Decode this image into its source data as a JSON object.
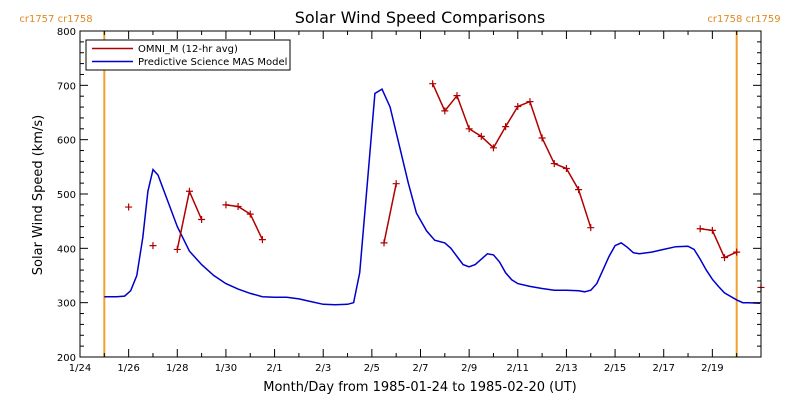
{
  "chart_data": {
    "type": "line",
    "title": "Solar Wind Speed Comparisons",
    "xlabel": "Month/Day from 1985-01-24 to 1985-02-20 (UT)",
    "ylabel": "Solar Wind Speed (km/s)",
    "xlim": [
      "1985-01-24",
      "1985-02-20"
    ],
    "ylim": [
      200,
      800
    ],
    "x_ticks": [
      {
        "date": "1985-01-24",
        "label": "1/24"
      },
      {
        "date": "1985-01-26",
        "label": "1/26"
      },
      {
        "date": "1985-01-28",
        "label": "1/28"
      },
      {
        "date": "1985-01-30",
        "label": "1/30"
      },
      {
        "date": "1985-02-01",
        "label": "2/1"
      },
      {
        "date": "1985-02-03",
        "label": "2/3"
      },
      {
        "date": "1985-02-05",
        "label": "2/5"
      },
      {
        "date": "1985-02-07",
        "label": "2/7"
      },
      {
        "date": "1985-02-09",
        "label": "2/9"
      },
      {
        "date": "1985-02-11",
        "label": "2/11"
      },
      {
        "date": "1985-02-13",
        "label": "2/13"
      },
      {
        "date": "1985-02-15",
        "label": "2/15"
      },
      {
        "date": "1985-02-17",
        "label": "2/17"
      },
      {
        "date": "1985-02-19",
        "label": "2/19"
      }
    ],
    "y_ticks": [
      200,
      300,
      400,
      500,
      600,
      700,
      800
    ],
    "grid": false,
    "legend_position": "top-left",
    "carrington_markers": [
      {
        "date": "1985-01-25T00:00",
        "labels": [
          "cr1757",
          "cr1758"
        ],
        "side": "left"
      },
      {
        "date": "1985-02-20T00:00",
        "labels": [
          "cr1758",
          "cr1759"
        ],
        "side": "right"
      }
    ],
    "series": [
      {
        "name": "OMNI_M (12-hr avg)",
        "color": "#b00000",
        "style": "line+marker",
        "segments": [
          [
            [
              "1985-01-26T00:00",
              476
            ]
          ],
          [
            [
              "1985-01-27T00:00",
              405
            ]
          ],
          [
            [
              "1985-01-28T00:00",
              398
            ],
            [
              "1985-01-28T12:00",
              505
            ],
            [
              "1985-01-29T00:00",
              453
            ]
          ],
          [
            [
              "1985-01-30T00:00",
              480
            ],
            [
              "1985-01-30T12:00",
              477
            ],
            [
              "1985-01-31T00:00",
              463
            ],
            [
              "1985-01-31T12:00",
              416
            ]
          ],
          [
            [
              "1985-02-05T12:00",
              410
            ],
            [
              "1985-02-06T00:00",
              519
            ]
          ],
          [
            [
              "1985-02-07T12:00",
              703
            ],
            [
              "1985-02-08T00:00",
              653
            ],
            [
              "1985-02-08T12:00",
              681
            ],
            [
              "1985-02-09T00:00",
              620
            ],
            [
              "1985-02-09T12:00",
              606
            ],
            [
              "1985-02-10T00:00",
              585
            ],
            [
              "1985-02-10T12:00",
              624
            ],
            [
              "1985-02-11T00:00",
              661
            ],
            [
              "1985-02-11T12:00",
              670
            ],
            [
              "1985-02-12T00:00",
              603
            ],
            [
              "1985-02-12T12:00",
              556
            ],
            [
              "1985-02-13T00:00",
              547
            ],
            [
              "1985-02-13T12:00",
              508
            ],
            [
              "1985-02-14T00:00",
              438
            ]
          ],
          [
            [
              "1985-02-18T12:00",
              436
            ],
            [
              "1985-02-19T00:00",
              433
            ],
            [
              "1985-02-19T12:00",
              383
            ],
            [
              "1985-02-20T00:00",
              393
            ]
          ],
          [
            [
              "1985-02-20T24:00",
              328
            ]
          ]
        ]
      },
      {
        "name": "Predictive Science MAS Model",
        "color": "#0000cc",
        "style": "line",
        "points": [
          [
            "1985-01-25T00:00",
            311
          ],
          [
            "1985-01-25T12:00",
            311
          ],
          [
            "1985-01-25T20:00",
            312
          ],
          [
            "1985-01-26T02:00",
            322
          ],
          [
            "1985-01-26T08:00",
            350
          ],
          [
            "1985-01-26T14:00",
            420
          ],
          [
            "1985-01-26T19:00",
            505
          ],
          [
            "1985-01-27T00:00",
            545
          ],
          [
            "1985-01-27T05:00",
            535
          ],
          [
            "1985-01-27T12:00",
            500
          ],
          [
            "1985-01-28T00:00",
            440
          ],
          [
            "1985-01-28T12:00",
            395
          ],
          [
            "1985-01-29T00:00",
            370
          ],
          [
            "1985-01-29T12:00",
            350
          ],
          [
            "1985-01-30T00:00",
            335
          ],
          [
            "1985-01-30T12:00",
            325
          ],
          [
            "1985-01-31T00:00",
            317
          ],
          [
            "1985-01-31T12:00",
            311
          ],
          [
            "1985-02-01T00:00",
            310
          ],
          [
            "1985-02-01T12:00",
            310
          ],
          [
            "1985-02-02T00:00",
            307
          ],
          [
            "1985-02-02T12:00",
            302
          ],
          [
            "1985-02-03T00:00",
            297
          ],
          [
            "1985-02-03T12:00",
            296
          ],
          [
            "1985-02-04T00:00",
            297
          ],
          [
            "1985-02-04T06:00",
            300
          ],
          [
            "1985-02-04T12:00",
            355
          ],
          [
            "1985-02-04T20:00",
            530
          ],
          [
            "1985-02-05T03:00",
            685
          ],
          [
            "1985-02-05T10:00",
            693
          ],
          [
            "1985-02-05T18:00",
            660
          ],
          [
            "1985-02-06T03:00",
            590
          ],
          [
            "1985-02-06T12:00",
            520
          ],
          [
            "1985-02-06T20:00",
            465
          ],
          [
            "1985-02-07T06:00",
            432
          ],
          [
            "1985-02-07T14:00",
            415
          ],
          [
            "1985-02-08T00:00",
            410
          ],
          [
            "1985-02-08T06:00",
            400
          ],
          [
            "1985-02-08T12:00",
            385
          ],
          [
            "1985-02-08T18:00",
            370
          ],
          [
            "1985-02-09T00:00",
            366
          ],
          [
            "1985-02-09T06:00",
            370
          ],
          [
            "1985-02-09T12:00",
            380
          ],
          [
            "1985-02-09T18:00",
            390
          ],
          [
            "1985-02-10T00:00",
            388
          ],
          [
            "1985-02-10T06:00",
            375
          ],
          [
            "1985-02-10T12:00",
            355
          ],
          [
            "1985-02-10T18:00",
            342
          ],
          [
            "1985-02-11T00:00",
            335
          ],
          [
            "1985-02-11T12:00",
            330
          ],
          [
            "1985-02-12T00:00",
            326
          ],
          [
            "1985-02-12T12:00",
            323
          ],
          [
            "1985-02-13T00:00",
            323
          ],
          [
            "1985-02-13T12:00",
            322
          ],
          [
            "1985-02-13T18:00",
            320
          ],
          [
            "1985-02-14T00:00",
            323
          ],
          [
            "1985-02-14T06:00",
            335
          ],
          [
            "1985-02-14T12:00",
            360
          ],
          [
            "1985-02-14T18:00",
            385
          ],
          [
            "1985-02-15T00:00",
            405
          ],
          [
            "1985-02-15T06:00",
            410
          ],
          [
            "1985-02-15T12:00",
            402
          ],
          [
            "1985-02-15T18:00",
            392
          ],
          [
            "1985-02-16T00:00",
            390
          ],
          [
            "1985-02-16T12:00",
            393
          ],
          [
            "1985-02-17T00:00",
            398
          ],
          [
            "1985-02-17T12:00",
            403
          ],
          [
            "1985-02-18T00:00",
            404
          ],
          [
            "1985-02-18T06:00",
            398
          ],
          [
            "1985-02-18T12:00",
            380
          ],
          [
            "1985-02-18T18:00",
            360
          ],
          [
            "1985-02-19T00:00",
            343
          ],
          [
            "1985-02-19T06:00",
            330
          ],
          [
            "1985-02-19T12:00",
            318
          ],
          [
            "1985-02-20T00:00",
            305
          ],
          [
            "1985-02-20T06:00",
            300
          ],
          [
            "1985-02-20T12:00",
            300
          ],
          [
            "1985-02-20T23:00",
            299
          ]
        ]
      }
    ]
  }
}
